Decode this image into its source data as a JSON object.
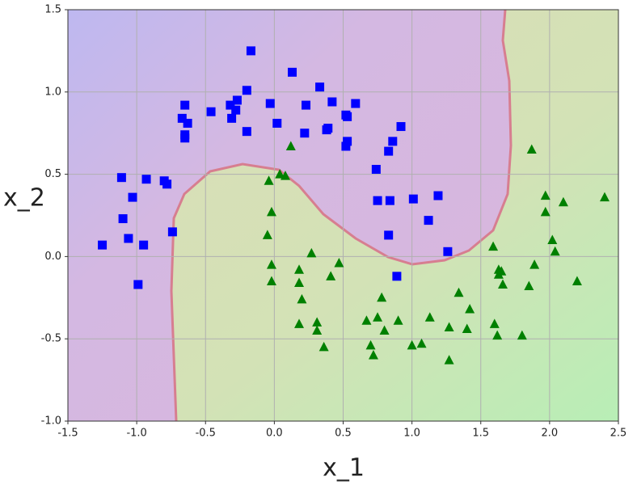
{
  "chart_data": {
    "type": "scatter",
    "xlabel": "x_1",
    "ylabel": "x_2",
    "xlim": [
      -1.5,
      2.5
    ],
    "ylim": [
      -1.0,
      1.5
    ],
    "xticks": [
      -1.5,
      {
        "value": -1.0,
        "label": "-1.0"
      },
      -0.5,
      {
        "value": 0.0,
        "label": "0.0"
      },
      0.5,
      {
        "value": 1.0,
        "label": "1.0"
      },
      1.5,
      {
        "value": 2.0,
        "label": "2.0"
      },
      2.5
    ],
    "yticks": [
      {
        "value": -1.0,
        "label": "-1.0"
      },
      -0.5,
      {
        "value": 0.0,
        "label": "0.0"
      },
      0.5,
      {
        "value": 1.0,
        "label": "1.0"
      },
      1.5
    ],
    "grid": true,
    "series": [
      {
        "marker": "square",
        "color": "#0000ff",
        "x": [
          -0.65,
          -0.67,
          -0.63,
          -0.65,
          -0.65,
          -0.46,
          -0.32,
          -0.27,
          -0.31,
          -0.28,
          -0.2,
          -0.2,
          -0.17,
          -0.03,
          0.02,
          0.13,
          0.23,
          0.22,
          0.33,
          0.38,
          0.39,
          0.42,
          0.52,
          0.53,
          0.53,
          0.52,
          0.59,
          0.74,
          0.75,
          0.83,
          0.86,
          0.92,
          0.84,
          0.83,
          0.89,
          1.01,
          1.12,
          1.19,
          1.26,
          -1.25,
          -1.11,
          -1.1,
          -1.06,
          -1.03,
          -0.99,
          -0.95,
          -0.93,
          -0.8,
          -0.78,
          -0.74
        ],
        "values": [
          0.92,
          0.84,
          0.81,
          0.74,
          0.72,
          0.88,
          0.92,
          0.95,
          0.84,
          0.89,
          0.76,
          1.01,
          1.25,
          0.93,
          0.81,
          1.12,
          0.92,
          0.75,
          1.03,
          0.77,
          0.78,
          0.94,
          0.86,
          0.85,
          0.7,
          0.67,
          0.93,
          0.53,
          0.34,
          0.64,
          0.7,
          0.79,
          0.34,
          0.13,
          -0.12,
          0.35,
          0.22,
          0.37,
          0.03,
          0.07,
          0.48,
          0.23,
          0.11,
          0.36,
          -0.17,
          0.07,
          0.47,
          0.46,
          0.44,
          0.15
        ]
      },
      {
        "marker": "triangle",
        "color": "#008000",
        "x": [
          0.12,
          0.04,
          0.08,
          -0.04,
          -0.02,
          -0.05,
          -0.02,
          -0.02,
          0.18,
          0.18,
          0.2,
          0.27,
          0.18,
          0.31,
          0.31,
          0.36,
          0.41,
          0.47,
          0.67,
          0.7,
          0.72,
          0.75,
          0.78,
          0.8,
          0.9,
          1.0,
          1.07,
          1.13,
          1.27,
          1.27,
          1.34,
          1.4,
          1.42,
          1.59,
          1.6,
          1.62,
          1.63,
          1.63,
          1.65,
          1.66,
          1.8,
          1.85,
          1.87,
          1.89,
          1.97,
          1.97,
          2.02,
          2.04,
          2.1,
          2.2,
          2.4
        ],
        "values": [
          0.67,
          0.5,
          0.49,
          0.46,
          0.27,
          0.13,
          -0.05,
          -0.15,
          -0.08,
          -0.16,
          -0.26,
          0.02,
          -0.41,
          -0.4,
          -0.45,
          -0.55,
          -0.12,
          -0.04,
          -0.39,
          -0.54,
          -0.6,
          -0.37,
          -0.25,
          -0.45,
          -0.39,
          -0.54,
          -0.53,
          -0.37,
          -0.43,
          -0.63,
          -0.22,
          -0.44,
          -0.32,
          0.06,
          -0.41,
          -0.48,
          -0.08,
          -0.11,
          -0.09,
          -0.17,
          -0.48,
          -0.18,
          0.65,
          -0.05,
          0.37,
          0.27,
          0.1,
          0.03,
          0.33,
          -0.15,
          0.36
        ]
      }
    ]
  }
}
